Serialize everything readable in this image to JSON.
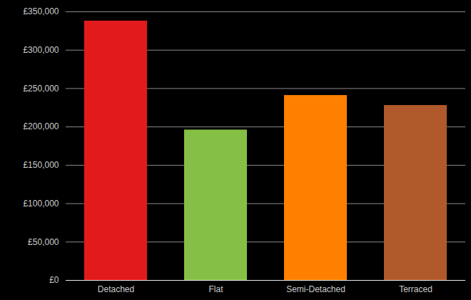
{
  "chart_data": {
    "type": "bar",
    "categories": [
      "Detached",
      "Flat",
      "Semi-Detached",
      "Terraced"
    ],
    "values": [
      338000,
      196000,
      241000,
      228000
    ],
    "colors": [
      "#e31a1c",
      "#86bf45",
      "#ff8000",
      "#b0592b"
    ],
    "ylim": [
      0,
      350000
    ],
    "yticks": [
      {
        "value": 0,
        "label": "£0"
      },
      {
        "value": 50000,
        "label": "£50,000"
      },
      {
        "value": 100000,
        "label": "£100,000"
      },
      {
        "value": 150000,
        "label": "£150,000"
      },
      {
        "value": 200000,
        "label": "£200,000"
      },
      {
        "value": 250000,
        "label": "£250,000"
      },
      {
        "value": 300000,
        "label": "£300,000"
      },
      {
        "value": 350000,
        "label": "£350,000"
      }
    ],
    "grid": true
  }
}
